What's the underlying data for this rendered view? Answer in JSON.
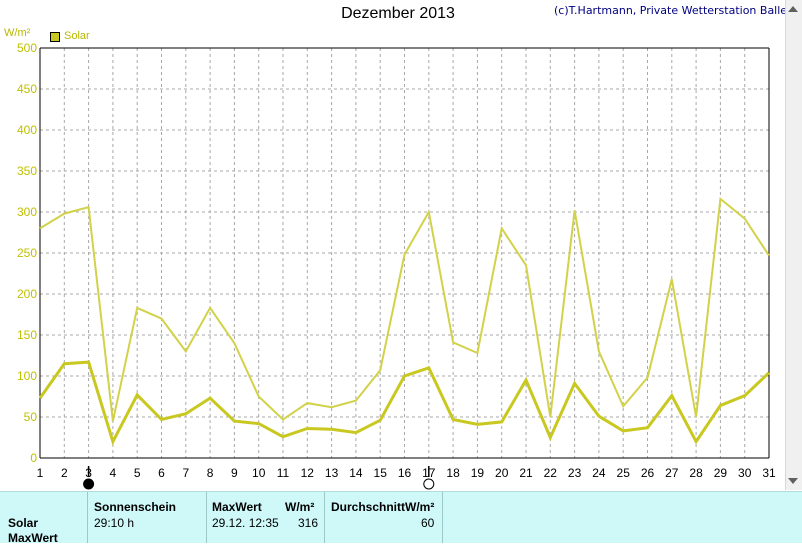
{
  "header": {
    "title": "Dezember 2013",
    "copyright": "(c)T.Hartmann, Private Wetterstation Ballersbach",
    "unit": "W/m²"
  },
  "legend": {
    "label": "Solar",
    "color": "#c8c820"
  },
  "chart_data": {
    "type": "line",
    "title": "Dezember 2013",
    "ylabel": "W/m²",
    "ylim": [
      0,
      500
    ],
    "yticks": [
      0,
      50,
      100,
      150,
      200,
      250,
      300,
      350,
      400,
      450,
      500
    ],
    "x": [
      1,
      2,
      3,
      4,
      5,
      6,
      7,
      8,
      9,
      10,
      11,
      12,
      13,
      14,
      15,
      16,
      17,
      18,
      19,
      20,
      21,
      22,
      23,
      24,
      25,
      26,
      27,
      28,
      29,
      30,
      31
    ],
    "grid": true,
    "moon_markers": [
      {
        "day": 3,
        "phase": "new-moon"
      },
      {
        "day": 17,
        "phase": "full-moon"
      }
    ],
    "series": [
      {
        "name": "MaxWert",
        "color": "#d2d24a",
        "values": [
          280,
          298,
          306,
          45,
          183,
          170,
          130,
          183,
          140,
          75,
          47,
          67,
          62,
          70,
          107,
          248,
          300,
          141,
          128,
          280,
          235,
          50,
          302,
          130,
          63,
          98,
          218,
          50,
          316,
          292,
          247
        ]
      },
      {
        "name": "Solar",
        "color": "#c8c820",
        "values": [
          73,
          115,
          117,
          20,
          77,
          47,
          54,
          73,
          45,
          42,
          26,
          36,
          35,
          31,
          46,
          100,
          110,
          47,
          41,
          44,
          95,
          25,
          91,
          51,
          33,
          37,
          76,
          20,
          64,
          76,
          104
        ]
      }
    ]
  },
  "table": {
    "col_sunshine": {
      "header": "Sonnenschein",
      "value": "29:10 h"
    },
    "col_max": {
      "header": "MaxWert",
      "unit": "W/m²",
      "time": "29.12.  12:35",
      "value": "316"
    },
    "col_avg": {
      "header": "DurchschnittW/m²",
      "value": "60"
    },
    "rows": [
      "Solar",
      "MaxWert"
    ]
  }
}
